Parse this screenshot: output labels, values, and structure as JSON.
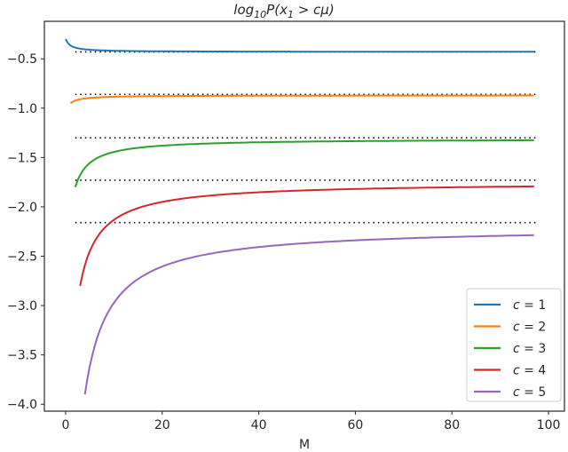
{
  "chart_data": {
    "type": "line",
    "title": "log10 P(x1 > cμ)",
    "title_parts": {
      "pre": "log",
      "sub1": "10",
      "mid": "P(x",
      "sub2": "1",
      "post": " > cμ)"
    },
    "xlabel": "M",
    "ylabel": "",
    "xlim": [
      -4.4,
      103.3
    ],
    "ylim": [
      -4.07,
      -0.12
    ],
    "xticks": [
      0,
      20,
      40,
      60,
      80,
      100
    ],
    "xtick_labels": [
      "0",
      "20",
      "40",
      "60",
      "80",
      "100"
    ],
    "yticks": [
      -0.5,
      -1.0,
      -1.5,
      -2.0,
      -2.5,
      -3.0,
      -3.5,
      -4.0
    ],
    "ytick_labels": [
      "-0.5",
      "-1.0",
      "-1.5",
      "-2.0",
      "-2.5",
      "-3.0",
      "-3.5",
      "-4.0"
    ],
    "grid": false,
    "legend_position": "lower right",
    "series": [
      {
        "name": "c = 1",
        "c": 1,
        "color": "#1f77b4",
        "x_start": 0,
        "x_end": 97,
        "y_start": -0.3,
        "asymptote": -0.43,
        "y_end": -0.43
      },
      {
        "name": "c = 2",
        "c": 2,
        "color": "#ff7f0e",
        "x_start": 1,
        "x_end": 97,
        "y_start": -0.95,
        "asymptote": -0.86,
        "y_end": -0.87
      },
      {
        "name": "c = 3",
        "c": 3,
        "color": "#2ca02c",
        "x_start": 2,
        "x_end": 97,
        "y_start": -1.8,
        "asymptote": -1.3,
        "y_end": -1.31
      },
      {
        "name": "c = 4",
        "c": 4,
        "color": "#d62728",
        "x_start": 3,
        "x_end": 97,
        "y_start": -2.8,
        "asymptote": -1.73,
        "y_end": -1.75
      },
      {
        "name": "c = 5",
        "c": 5,
        "color": "#9467bd",
        "x_start": 4,
        "x_end": 97,
        "y_start": -3.9,
        "asymptote": -2.16,
        "y_end": -2.2
      }
    ],
    "reference_lines": [
      {
        "y": -0.43,
        "x_start": 2,
        "x_end": 98,
        "style": "dotted",
        "color": "#000000"
      },
      {
        "y": -0.86,
        "x_start": 2,
        "x_end": 98,
        "style": "dotted",
        "color": "#000000"
      },
      {
        "y": -1.3,
        "x_start": 2,
        "x_end": 98,
        "style": "dotted",
        "color": "#000000"
      },
      {
        "y": -1.73,
        "x_start": 2,
        "x_end": 98,
        "style": "dotted",
        "color": "#000000"
      },
      {
        "y": -2.16,
        "x_start": 2,
        "x_end": 98,
        "style": "dotted",
        "color": "#000000"
      }
    ]
  }
}
